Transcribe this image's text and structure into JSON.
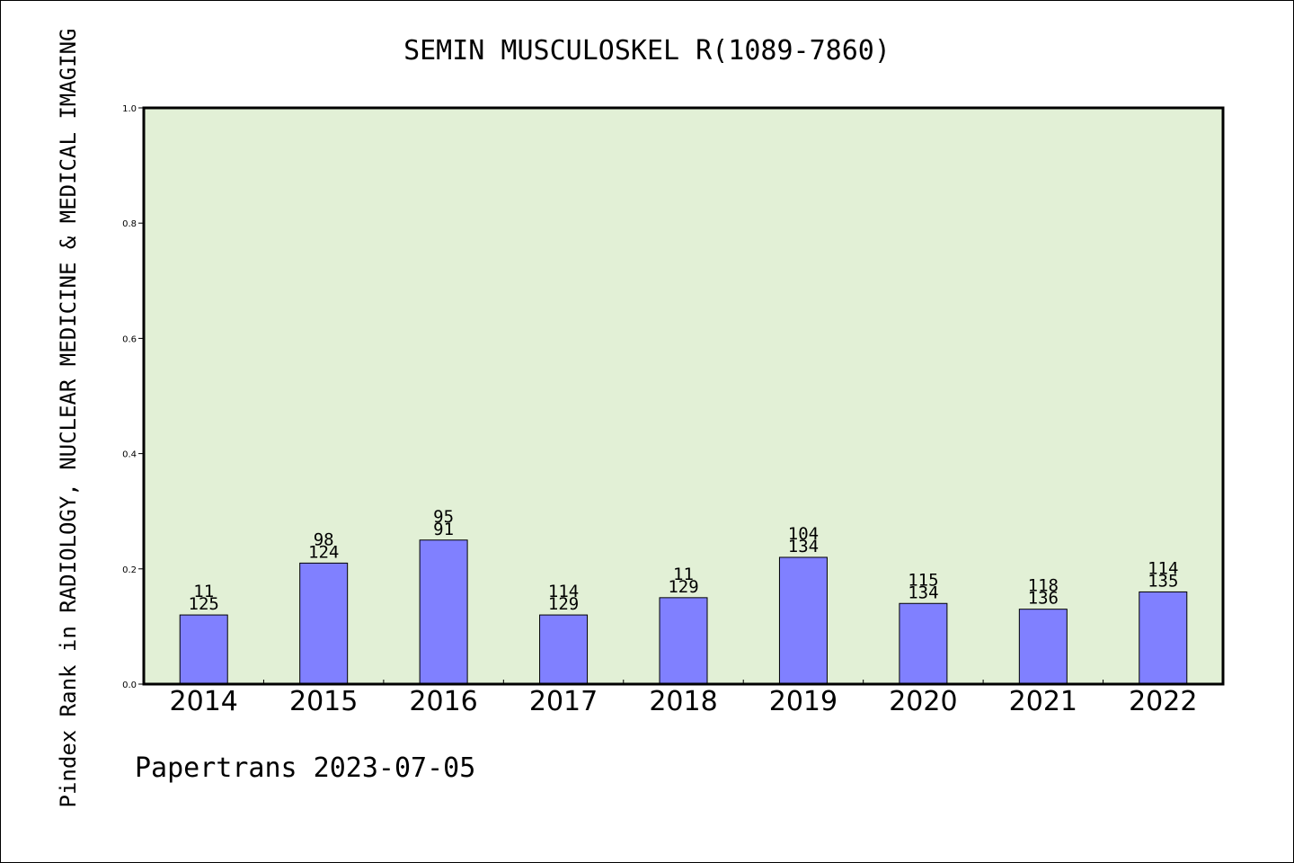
{
  "chart_data": {
    "type": "bar",
    "title": "SEMIN MUSCULOSKEL R(1089-7860)",
    "xlabel": "",
    "ylabel": "Pindex Rank in RADIOLOGY, NUCLEAR MEDICINE & MEDICAL IMAGING",
    "categories": [
      "2014",
      "2015",
      "2016",
      "2017",
      "2018",
      "2019",
      "2020",
      "2021",
      "2022"
    ],
    "values": [
      0.12,
      0.21,
      0.25,
      0.12,
      0.15,
      0.22,
      0.14,
      0.13,
      0.16
    ],
    "label_top": [
      "11",
      "98",
      "95",
      "114",
      "11",
      "104",
      "115",
      "118",
      "114"
    ],
    "label_bottom": [
      "125",
      "124",
      "91",
      "129",
      "129",
      "134",
      "134",
      "136",
      "135"
    ],
    "ylim": [
      0,
      1.0
    ],
    "yticks": [
      "0.0",
      "0.2",
      "0.4",
      "0.6",
      "0.8",
      "1.0"
    ],
    "grid": false,
    "colors": {
      "bar": "#8080ff",
      "plot_bg": "#e2f0d6",
      "border": "#000000"
    }
  },
  "footer": "Papertrans 2023-07-05"
}
